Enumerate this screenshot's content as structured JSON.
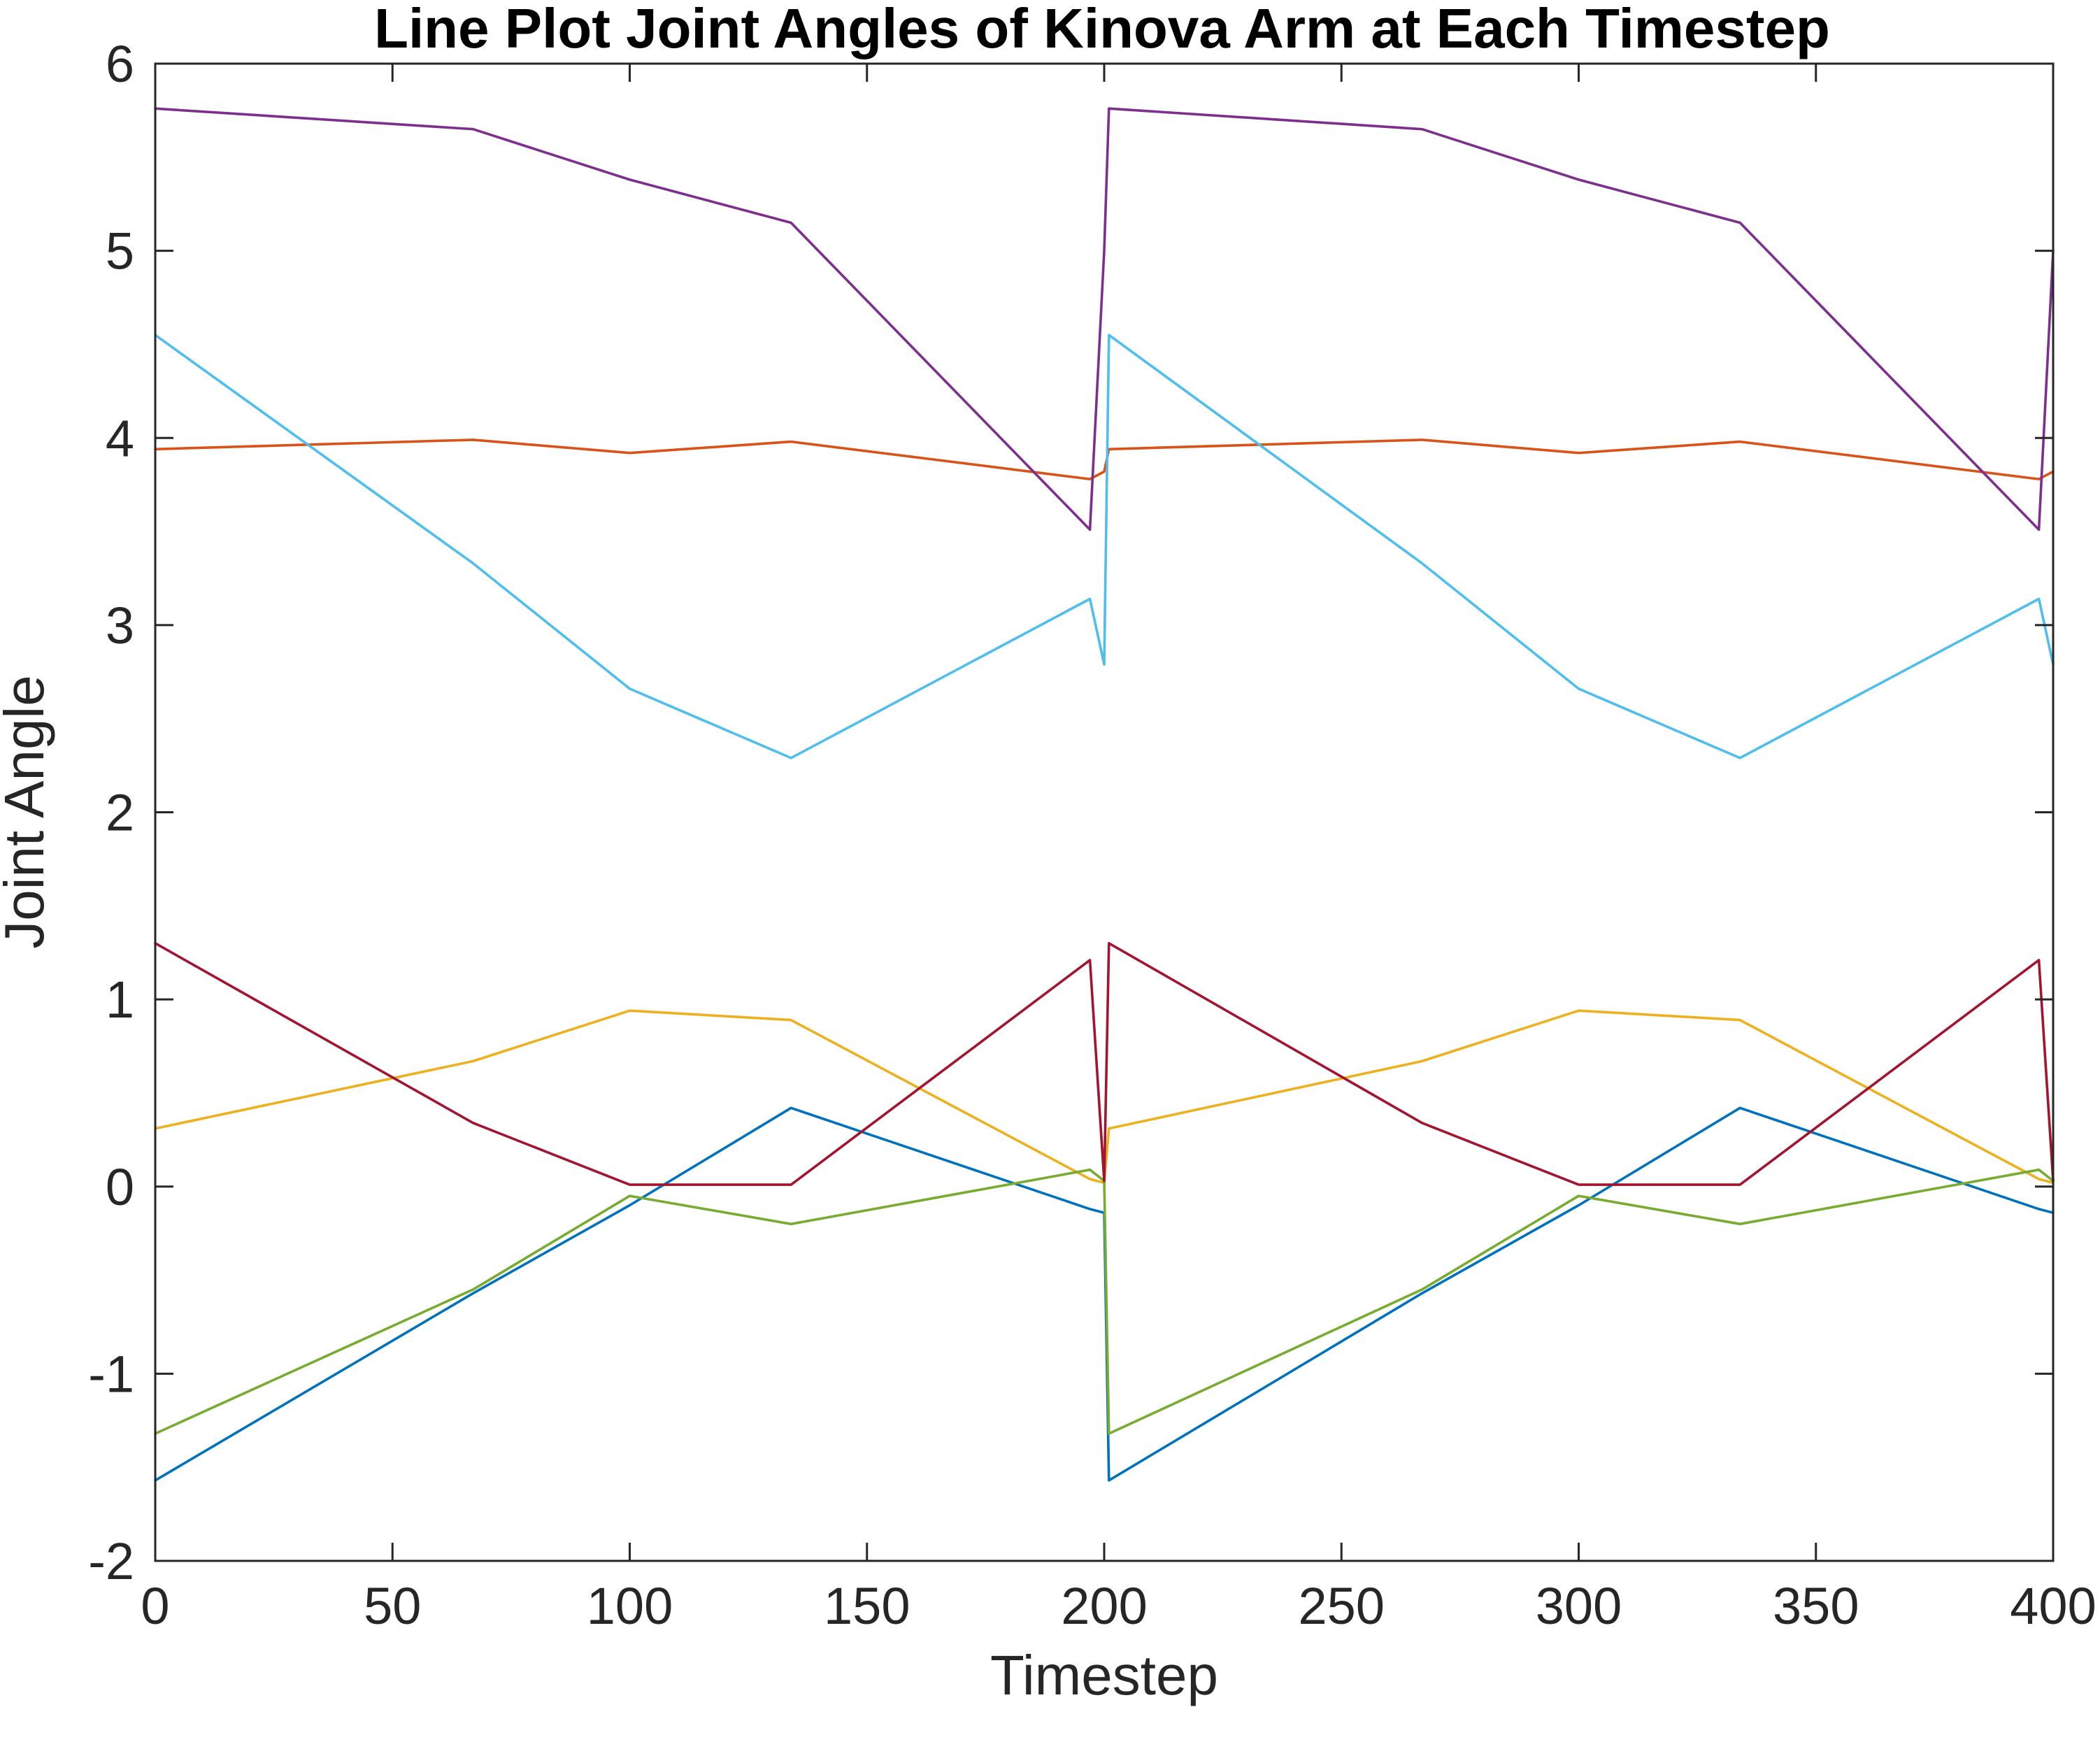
{
  "chart_data": {
    "type": "line",
    "title": "Line Plot Joint Angles of Kinova Arm at Each Timestep",
    "xlabel": "Timestep",
    "ylabel": "Joint Angle",
    "xlim": [
      0,
      400
    ],
    "ylim": [
      -2,
      6
    ],
    "xticks": [
      0,
      50,
      100,
      150,
      200,
      250,
      300,
      350,
      400
    ],
    "yticks": [
      -2,
      -1,
      0,
      1,
      2,
      3,
      4,
      5,
      6
    ],
    "xtick_labels": [
      "0",
      "50",
      "100",
      "150",
      "200",
      "250",
      "300",
      "350",
      "400"
    ],
    "ytick_labels": [
      "-2",
      "-1",
      "0",
      "1",
      "2",
      "3",
      "4",
      "5",
      "6"
    ],
    "grid": false,
    "legend": "none",
    "series": [
      {
        "color": "#0072BD",
        "x": [
          0,
          67,
          100,
          134,
          197,
          200,
          201,
          267,
          300,
          334,
          397,
          400
        ],
        "y": [
          -1.57,
          -0.57,
          -0.1,
          0.42,
          -0.12,
          -0.14,
          -1.57,
          -0.57,
          -0.1,
          0.42,
          -0.12,
          -0.14
        ]
      },
      {
        "color": "#D95319",
        "x": [
          0,
          67,
          100,
          134,
          197,
          200,
          201,
          267,
          300,
          334,
          397,
          400
        ],
        "y": [
          3.94,
          3.99,
          3.92,
          3.98,
          3.78,
          3.82,
          3.94,
          3.99,
          3.92,
          3.98,
          3.78,
          3.82
        ]
      },
      {
        "color": "#EDB120",
        "x": [
          0,
          67,
          100,
          134,
          197,
          200,
          201,
          267,
          300,
          334,
          397,
          400
        ],
        "y": [
          0.31,
          0.67,
          0.94,
          0.89,
          0.04,
          0.02,
          0.31,
          0.67,
          0.94,
          0.89,
          0.04,
          0.02
        ]
      },
      {
        "color": "#7E2F8E",
        "x": [
          0,
          67,
          100,
          134,
          197,
          200,
          201,
          267,
          300,
          334,
          397,
          400
        ],
        "y": [
          5.76,
          5.65,
          5.38,
          5.15,
          3.51,
          5.0,
          5.76,
          5.65,
          5.38,
          5.15,
          3.51,
          5.0
        ]
      },
      {
        "color": "#77AC30",
        "x": [
          0,
          67,
          100,
          134,
          197,
          200,
          201,
          267,
          300,
          334,
          397,
          400
        ],
        "y": [
          -1.32,
          -0.55,
          -0.05,
          -0.2,
          0.09,
          0.03,
          -1.32,
          -0.55,
          -0.05,
          -0.2,
          0.09,
          0.03
        ]
      },
      {
        "color": "#4DBEEE",
        "x": [
          0,
          67,
          100,
          134,
          197,
          200,
          201,
          267,
          300,
          334,
          397,
          400
        ],
        "y": [
          4.55,
          3.33,
          2.66,
          2.29,
          3.14,
          2.79,
          4.55,
          3.33,
          2.66,
          2.29,
          3.14,
          2.79
        ]
      },
      {
        "color": "#A2142F",
        "x": [
          0,
          67,
          100,
          134,
          197,
          200,
          201,
          267,
          300,
          334,
          397,
          400
        ],
        "y": [
          1.3,
          0.34,
          0.01,
          0.01,
          1.21,
          0.03,
          1.3,
          0.34,
          0.01,
          0.01,
          1.21,
          0.03
        ]
      }
    ]
  }
}
